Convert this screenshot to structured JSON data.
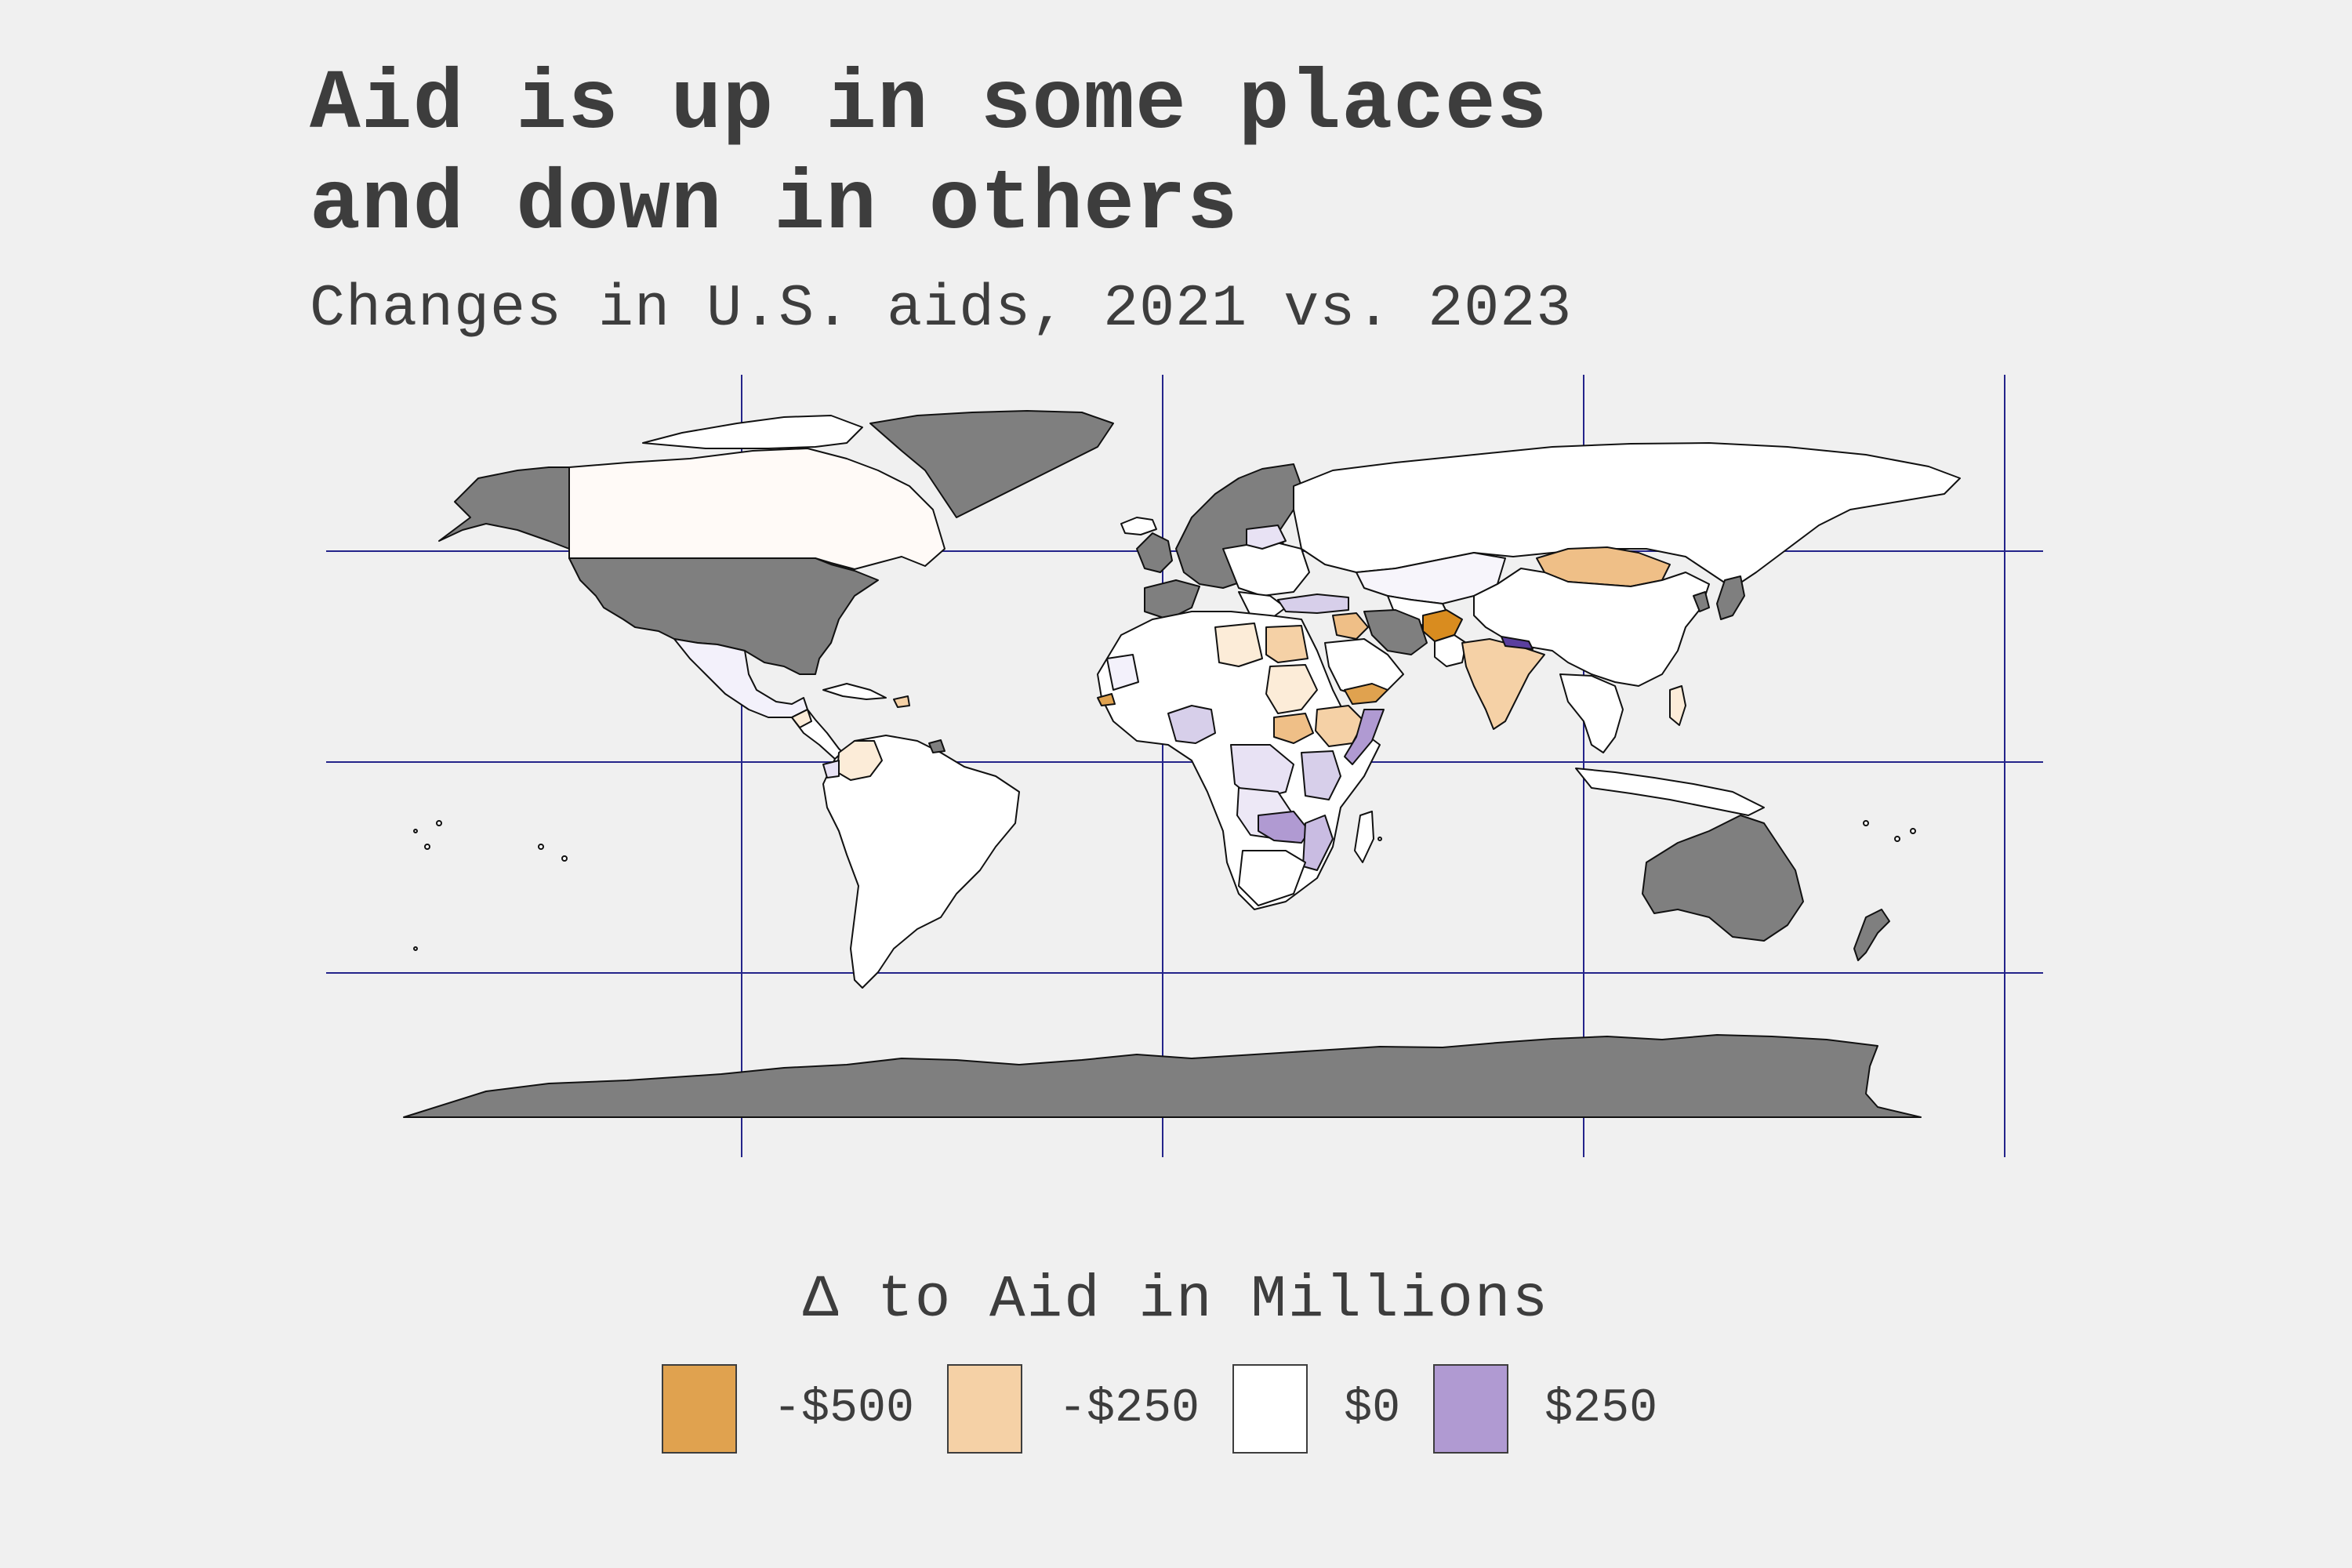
{
  "title_lines": [
    "Aid is up in some places",
    "and down in others"
  ],
  "subtitle": "Changes in U.S. aids, 2021 vs. 2023",
  "colors": {
    "background": "#f0f0f0",
    "text": "#3d3d3d",
    "graticule": "#24248a",
    "no_data": "#7f7f7f",
    "neg_500": "#e0a24f",
    "neg_250": "#f5d1a6",
    "zero": "#ffffff",
    "pos_250": "#b09ad2",
    "strong_neg": "#d98c1f",
    "strong_pos": "#5a3f9e"
  },
  "legend": {
    "title": "Δ to Aid in Millions",
    "items": [
      {
        "label": "-$500",
        "color": "#e0a24f"
      },
      {
        "label": "-$250",
        "color": "#f5d1a6"
      },
      {
        "label": "$0",
        "color": "#ffffff"
      },
      {
        "label": "$250",
        "color": "#b09ad2"
      }
    ]
  }
}
